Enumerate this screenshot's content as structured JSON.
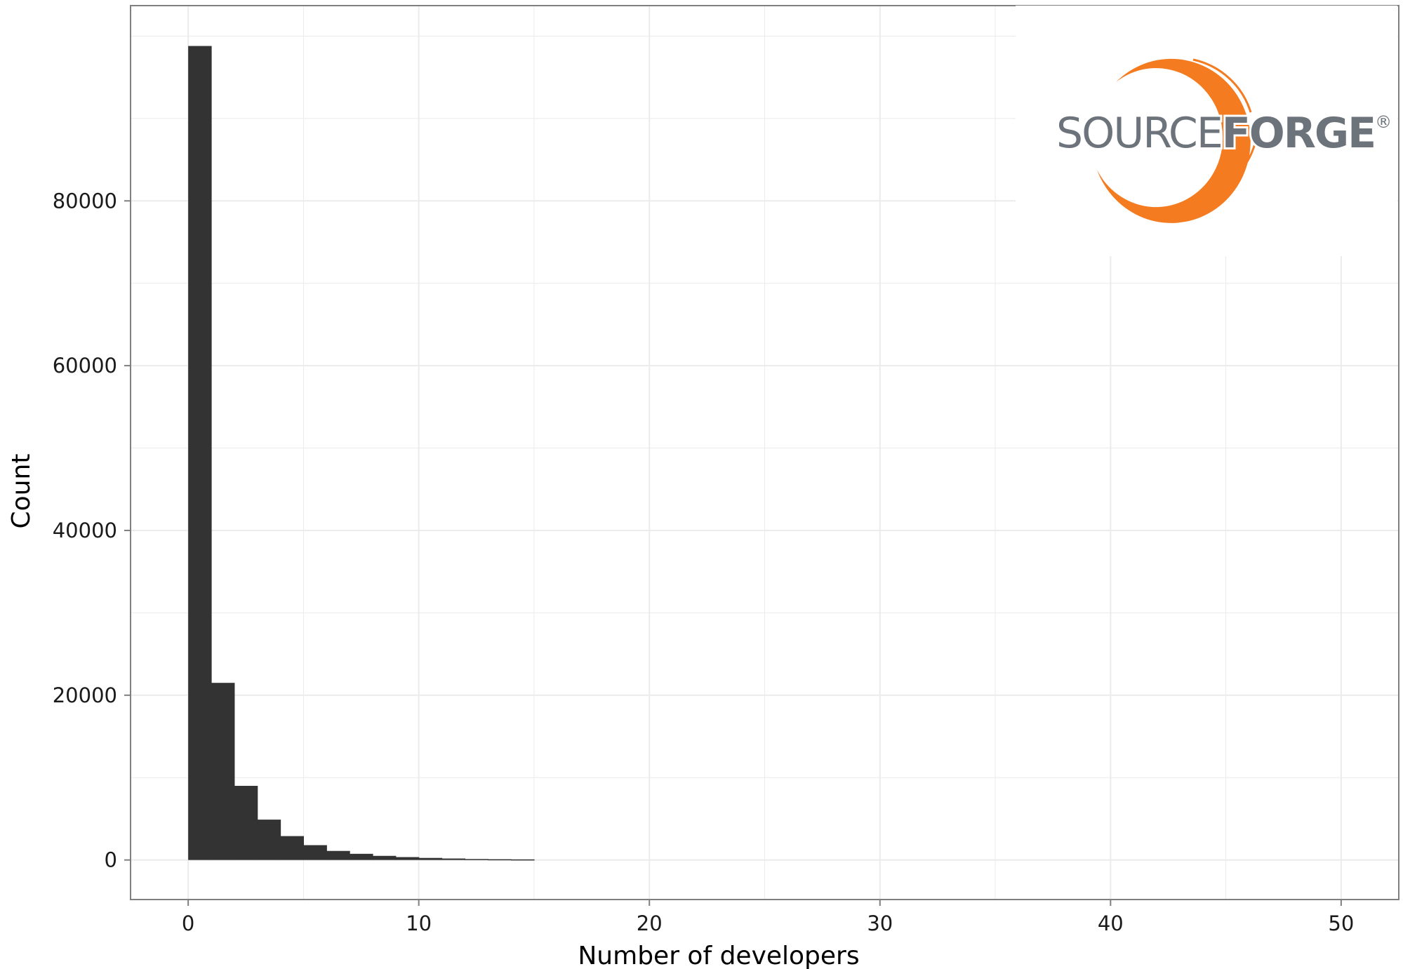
{
  "chart_data": {
    "type": "bar",
    "title": "",
    "xlabel": "Number of developers",
    "ylabel": "Count",
    "xlim": [
      -2.5,
      52.5
    ],
    "ylim": [
      -4800,
      103700
    ],
    "x_ticks": [
      0,
      10,
      20,
      30,
      40,
      50
    ],
    "y_ticks": [
      0,
      20000,
      40000,
      60000,
      80000
    ],
    "grid": true,
    "bin_width": 1,
    "bins": [
      {
        "x_start": 0,
        "x_end": 1,
        "count": 98800
      },
      {
        "x_start": 1,
        "x_end": 2,
        "count": 21500
      },
      {
        "x_start": 2,
        "x_end": 3,
        "count": 9000
      },
      {
        "x_start": 3,
        "x_end": 4,
        "count": 4900
      },
      {
        "x_start": 4,
        "x_end": 5,
        "count": 2900
      },
      {
        "x_start": 5,
        "x_end": 6,
        "count": 1800
      },
      {
        "x_start": 6,
        "x_end": 7,
        "count": 1100
      },
      {
        "x_start": 7,
        "x_end": 8,
        "count": 750
      },
      {
        "x_start": 8,
        "x_end": 9,
        "count": 500
      },
      {
        "x_start": 9,
        "x_end": 10,
        "count": 350
      },
      {
        "x_start": 10,
        "x_end": 11,
        "count": 250
      },
      {
        "x_start": 11,
        "x_end": 12,
        "count": 180
      },
      {
        "x_start": 12,
        "x_end": 13,
        "count": 120
      },
      {
        "x_start": 13,
        "x_end": 14,
        "count": 90
      },
      {
        "x_start": 14,
        "x_end": 15,
        "count": 70
      }
    ],
    "bar_color": "#333333",
    "grid_color": "#ebebeb",
    "panel_border_color": "#7f7f7f"
  },
  "logo": {
    "text_light": "SOURCE",
    "text_bold": "FORGE",
    "registered": "®",
    "text_color": "#6d737b",
    "accent_color": "#f47b20"
  }
}
